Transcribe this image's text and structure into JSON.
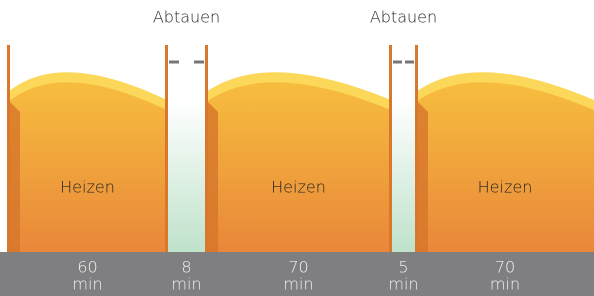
{
  "segments": [
    {
      "label": "Heizen",
      "duration": 60,
      "unit": "min"
    },
    {
      "label": "Abtauen",
      "duration": 8,
      "unit": "min"
    },
    {
      "label": "Heizen",
      "duration": 70,
      "unit": "min"
    },
    {
      "label": "Abtauen",
      "duration": 5,
      "unit": "min"
    },
    {
      "label": "Heizen",
      "duration": 70,
      "unit": "min"
    }
  ]
}
